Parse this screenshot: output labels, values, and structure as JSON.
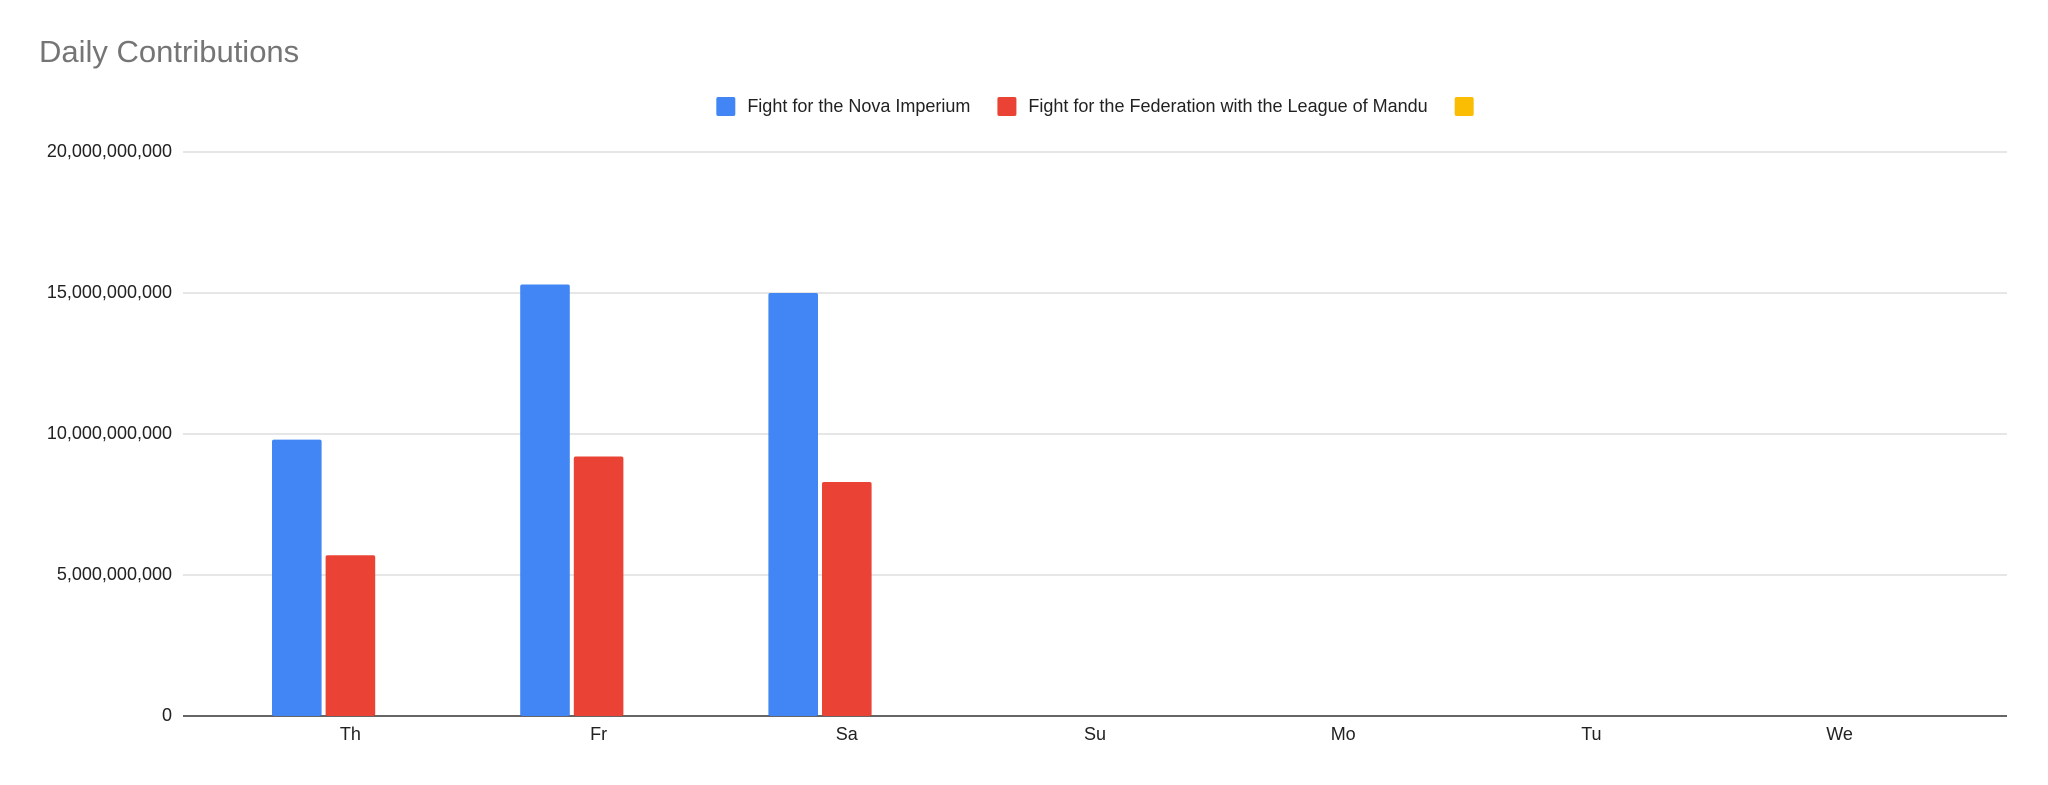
{
  "chart_data": {
    "type": "bar",
    "title": "Daily Contributions",
    "categories": [
      "Th",
      "Fr",
      "Sa",
      "Su",
      "Mo",
      "Tu",
      "We"
    ],
    "series": [
      {
        "name": "Fight for the Nova Imperium",
        "color": "#4285f4",
        "values": [
          9800000000,
          15300000000,
          15000000000,
          null,
          null,
          null,
          null
        ]
      },
      {
        "name": "Fight for the Federation with the League of Mandu",
        "color": "#ea4335",
        "values": [
          5700000000,
          9200000000,
          8300000000,
          null,
          null,
          null,
          null
        ]
      },
      {
        "name": null,
        "color": "#fbbc04",
        "values": [
          null,
          null,
          null,
          null,
          null,
          null,
          null
        ]
      }
    ],
    "ylim": [
      0,
      20000000000
    ],
    "yticks": [
      0,
      {
        "value": 5000000000,
        "label": "5,000,000,000"
      },
      {
        "value": 10000000000,
        "label": "10,000,000,000"
      },
      {
        "value": 15000000000,
        "label": "15,000,000,000"
      },
      {
        "value": 20000000000,
        "label": "20,000,000,000"
      }
    ],
    "grid": true,
    "legend": "top"
  }
}
